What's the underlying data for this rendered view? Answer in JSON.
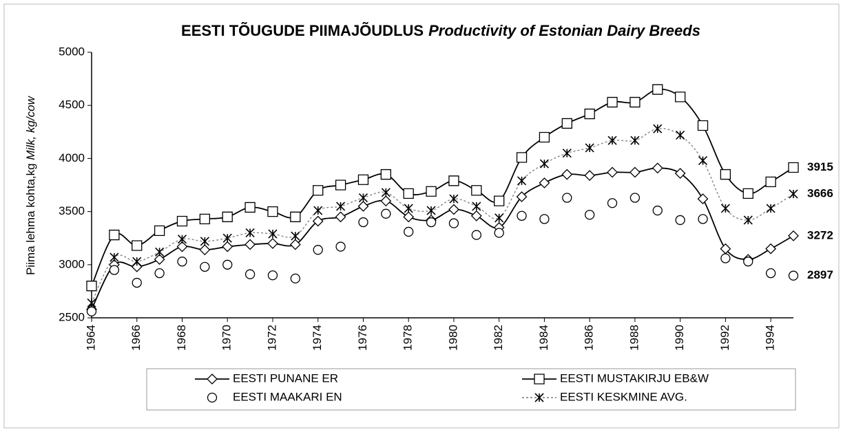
{
  "chart_data": {
    "type": "line",
    "title": "EESTI TÕUGUDE PIIMAJÕUDLUS",
    "title_en": "Productivity of Estonian Dairy Breeds",
    "ylabel": "Piima lehma kohta,kg ",
    "ylabel_en": "Milk, kg/cow",
    "x": [
      1964,
      1965,
      1966,
      1967,
      1968,
      1969,
      1970,
      1971,
      1972,
      1973,
      1974,
      1975,
      1976,
      1977,
      1978,
      1979,
      1980,
      1981,
      1982,
      1983,
      1984,
      1985,
      1986,
      1987,
      1988,
      1989,
      1990,
      1991,
      1992,
      1993,
      1994,
      1995
    ],
    "xlim": [
      1964,
      1995
    ],
    "xticks": [
      1964,
      1966,
      1968,
      1970,
      1972,
      1974,
      1976,
      1978,
      1980,
      1982,
      1984,
      1986,
      1988,
      1990,
      1992,
      1994
    ],
    "ylim": [
      2500,
      5000
    ],
    "yticks": [
      2500,
      3000,
      3500,
      4000,
      4500,
      5000
    ],
    "grid": false,
    "series": [
      {
        "name": "EESTI PUNANE ER",
        "color": "#000000",
        "line": "solid",
        "marker": "diamond",
        "values": [
          2580,
          3000,
          2980,
          3050,
          3170,
          3140,
          3170,
          3190,
          3200,
          3190,
          3410,
          3450,
          3550,
          3600,
          3450,
          3420,
          3520,
          3460,
          3350,
          3640,
          3770,
          3850,
          3840,
          3870,
          3870,
          3910,
          3860,
          3620,
          3150,
          3050,
          3150,
          3272
        ]
      },
      {
        "name": "EESTI MUSTAKIRJU EB&W",
        "color": "#000000",
        "line": "solid",
        "marker": "square",
        "values": [
          2800,
          3280,
          3180,
          3320,
          3410,
          3430,
          3450,
          3540,
          3500,
          3450,
          3700,
          3750,
          3800,
          3850,
          3670,
          3690,
          3790,
          3700,
          3600,
          4010,
          4200,
          4330,
          4420,
          4530,
          4530,
          4650,
          4580,
          4310,
          3850,
          3670,
          3780,
          3915
        ]
      },
      {
        "name": "EESTI MAAKARI EN",
        "color": "#000000",
        "line": "none",
        "marker": "circle",
        "values": [
          2560,
          2950,
          2830,
          2920,
          3030,
          2980,
          3000,
          2910,
          2900,
          2870,
          3140,
          3170,
          3400,
          3480,
          3310,
          3400,
          3390,
          3280,
          3300,
          3460,
          3430,
          3630,
          3470,
          3580,
          3630,
          3510,
          3420,
          3430,
          3060,
          3030,
          2920,
          2897
        ]
      },
      {
        "name": "EESTI KESKMINE AVG.",
        "color": "#8a8a8a",
        "line": "dotted",
        "marker": "star",
        "values": [
          2640,
          3070,
          3030,
          3120,
          3240,
          3220,
          3250,
          3300,
          3290,
          3270,
          3510,
          3550,
          3630,
          3680,
          3530,
          3510,
          3620,
          3550,
          3440,
          3790,
          3950,
          4050,
          4100,
          4170,
          4170,
          4280,
          4220,
          3980,
          3530,
          3420,
          3530,
          3666
        ]
      }
    ]
  }
}
